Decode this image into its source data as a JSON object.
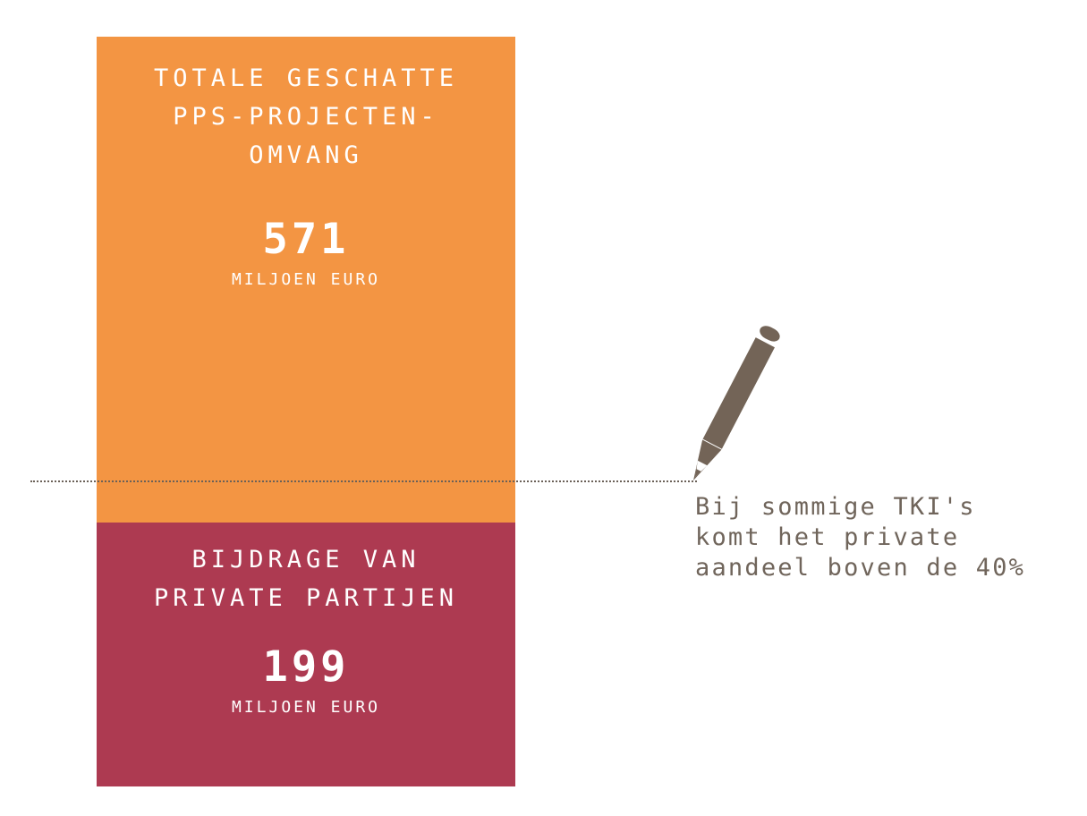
{
  "chart_data": {
    "type": "bar",
    "series": [
      {
        "name": "TOTALE GESCHATTE\nPPS-PROJECTEN-\nOMVANG",
        "value": 571,
        "unit": "MILJOEN\nEURO",
        "color": "#f39543"
      },
      {
        "name": "BIJDRAGE VAN\nPRIVATE PARTIJEN",
        "value": 199,
        "unit": "MILJOEN\nEURO",
        "color": "#ad3a51"
      }
    ],
    "annotation": "Bij sommige TKI's\nkomt het private\naandeel boven de 40%"
  },
  "icons": {
    "pencil": "pencil-icon"
  },
  "colors": {
    "orange": "#f39543",
    "crimson": "#ad3a51",
    "annotation": "#70655b"
  }
}
